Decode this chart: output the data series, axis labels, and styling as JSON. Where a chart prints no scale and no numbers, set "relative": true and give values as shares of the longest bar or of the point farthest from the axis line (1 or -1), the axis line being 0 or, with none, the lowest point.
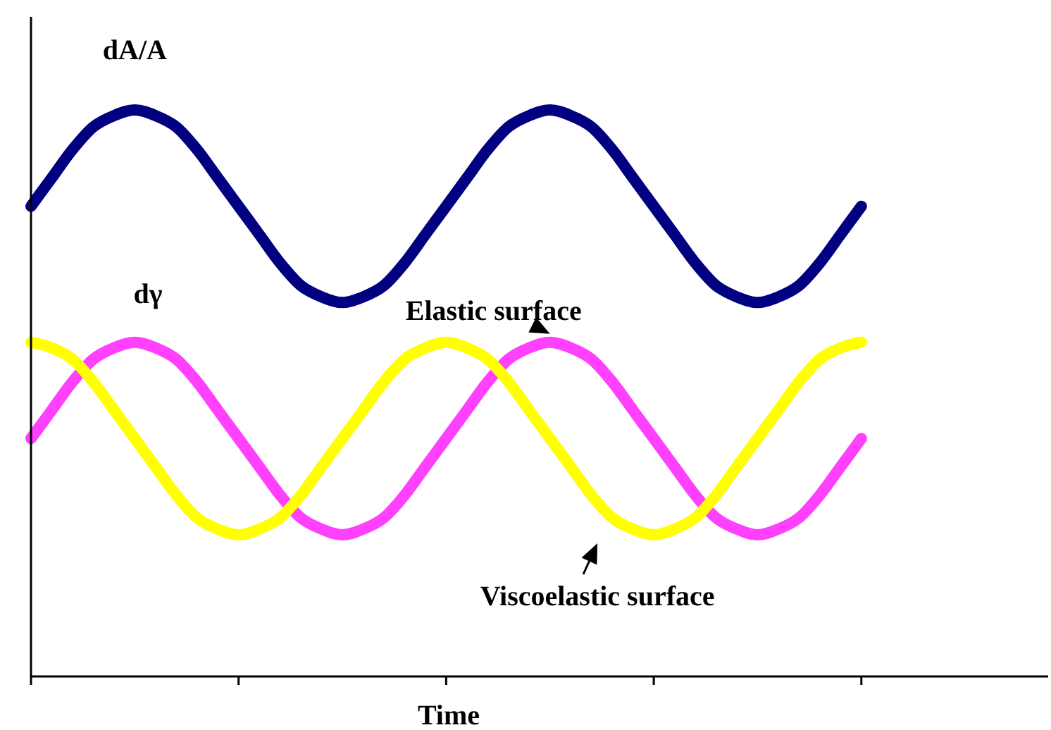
{
  "chart_data": {
    "type": "line",
    "relative": true,
    "xlabel": "Time",
    "annotations": [
      "dγ"
    ],
    "line_style": "solid",
    "categories": [
      null,
      null,
      null,
      null,
      null,
      null,
      null,
      null,
      null,
      null,
      null,
      null,
      null,
      null,
      null,
      null,
      null,
      null,
      null,
      null,
      null,
      null,
      null,
      null,
      null,
      null,
      null,
      null,
      null,
      null,
      null,
      null,
      null,
      null,
      null,
      null,
      null,
      null,
      null,
      null,
      null,
      null,
      null,
      null,
      null,
      null,
      null,
      null,
      null,
      null
    ],
    "series": [
      {
        "name": "dA/A",
        "color": "#000080",
        "values": [
          0.83,
          0.88,
          0.93,
          0.97,
          0.99,
          1,
          0.99,
          0.97,
          0.93,
          0.88,
          0.83,
          0.78,
          0.73,
          0.69,
          0.67,
          0.66,
          0.67,
          0.69,
          0.73,
          0.78,
          0.83,
          0.88,
          0.93,
          0.97,
          0.99,
          1,
          0.99,
          0.97,
          0.93,
          0.88,
          0.83,
          0.78,
          0.73,
          0.69,
          0.67,
          0.66,
          0.67,
          0.69,
          0.73,
          0.78,
          0.83,
          null,
          null,
          null,
          null,
          null,
          null,
          null,
          null,
          null
        ]
      },
      {
        "name": "Elastic surface",
        "color": "#ff40ff",
        "values": [
          0.42,
          0.47,
          0.52,
          0.56,
          0.58,
          0.59,
          0.58,
          0.56,
          0.52,
          0.47,
          0.42,
          0.37,
          0.32,
          0.28,
          0.26,
          0.25,
          0.26,
          0.28,
          0.32,
          0.37,
          0.42,
          0.47,
          0.52,
          0.56,
          0.58,
          0.59,
          0.58,
          0.56,
          0.52,
          0.47,
          0.42,
          0.37,
          0.32,
          0.28,
          0.26,
          0.25,
          0.26,
          0.28,
          0.32,
          0.37,
          0.42,
          null,
          null,
          null,
          null,
          null,
          null,
          null,
          null,
          null
        ]
      },
      {
        "name": "Viscoelastic surface",
        "color": "#ffff00",
        "values": [
          0.59,
          0.58,
          0.56,
          0.52,
          0.47,
          0.42,
          0.37,
          0.32,
          0.28,
          0.26,
          0.25,
          0.26,
          0.28,
          0.32,
          0.37,
          0.42,
          0.47,
          0.52,
          0.56,
          0.58,
          0.59,
          0.58,
          0.56,
          0.52,
          0.47,
          0.42,
          0.37,
          0.32,
          0.28,
          0.26,
          0.25,
          0.26,
          0.28,
          0.32,
          0.37,
          0.42,
          0.47,
          0.52,
          0.56,
          0.58,
          0.59,
          null,
          null,
          null,
          null,
          null,
          null,
          null,
          null,
          null
        ]
      }
    ]
  }
}
